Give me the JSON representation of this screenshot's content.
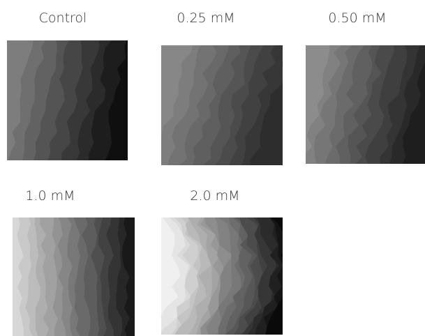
{
  "panels": [
    {
      "label": "Control"
    },
    {
      "label": "0.25 mM"
    },
    {
      "label": "0.50 mM"
    },
    {
      "label": "1.0 mM"
    },
    {
      "label": "2.0 mM"
    }
  ]
}
